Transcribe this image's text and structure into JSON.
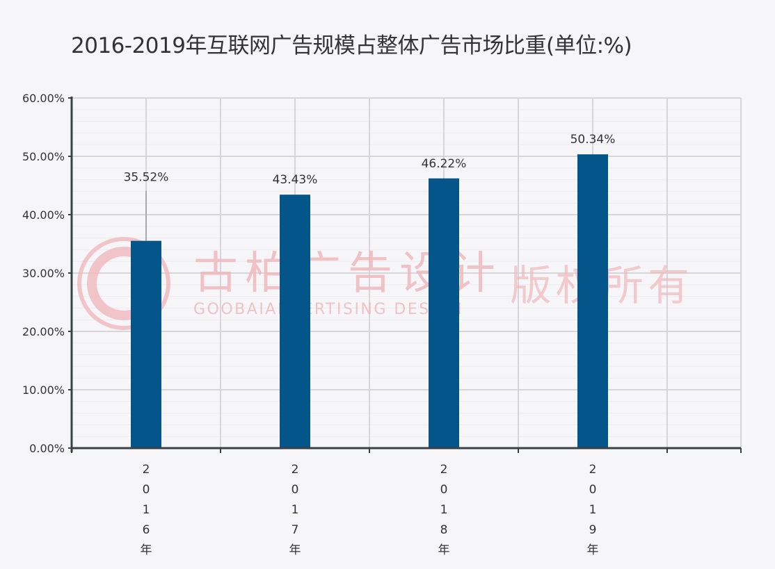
{
  "chart_data": {
    "type": "bar",
    "title": "2016-2019年互联网广告规模占整体广告市场比重(单位:%)",
    "categories": [
      "2016年",
      "2017年",
      "2018年",
      "2019年"
    ],
    "values": [
      35.52,
      43.43,
      46.22,
      50.34
    ],
    "data_labels": [
      "35.52%",
      "43.43%",
      "46.22%",
      "50.34%"
    ],
    "yticks": [
      "0.00%",
      "10.00%",
      "20.00%",
      "30.00%",
      "40.00%",
      "50.00%",
      "60.00%"
    ],
    "ylim": [
      0,
      60
    ],
    "grid": true,
    "bar_color": "#04568a",
    "xlabel": "",
    "ylabel": ""
  },
  "watermark": {
    "cn": "古柏广告设计",
    "en": "GOOBAIADVERTISING DESIGN",
    "rights": "版权所有",
    "color": "#f0b8bd"
  }
}
